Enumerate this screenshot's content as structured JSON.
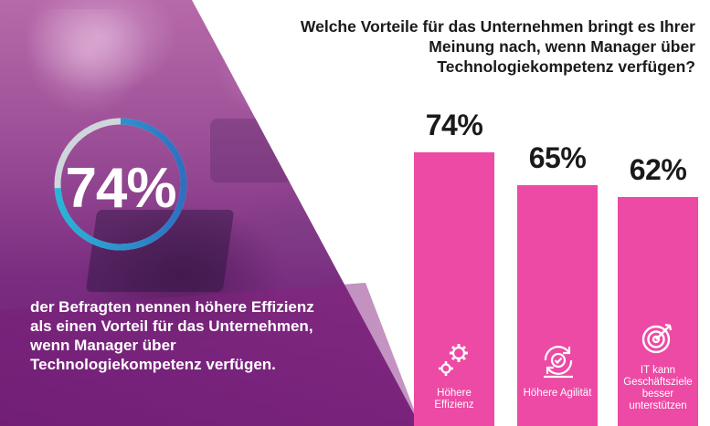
{
  "highlight": {
    "percent": "74%",
    "value": 0.74,
    "caption": "der Befragten nennen höhere Effizienz als einen Vorteil für das Unternehmen, wenn Manager über Technologiekompetenz verfügen."
  },
  "question": "Welche Vorteile für das Unternehmen bringt es Ihrer Meinung nach, wenn Manager über Technologiekompetenz verfügen?",
  "colors": {
    "bar": "#ec4aa4",
    "ring_light": "#cfd6db",
    "ring_blue": "#2f8fd0",
    "ring_cyan": "#28b6d8"
  },
  "chart_data": {
    "type": "bar",
    "categories": [
      "Höhere Effizienz",
      "Höhere Agilität",
      "IT kann Geschäftsziele besser unterstützen"
    ],
    "values": [
      74,
      65,
      62
    ],
    "value_labels": [
      "74%",
      "65%",
      "62%"
    ],
    "icons": [
      "gears-icon",
      "agility-cycle-icon",
      "target-icon"
    ],
    "title": "Welche Vorteile für das Unternehmen bringt es Ihrer Meinung nach, wenn Manager über Technologiekompetenz verfügen?",
    "xlabel": "",
    "ylabel": "",
    "ylim": [
      0,
      100
    ],
    "grid": false
  }
}
